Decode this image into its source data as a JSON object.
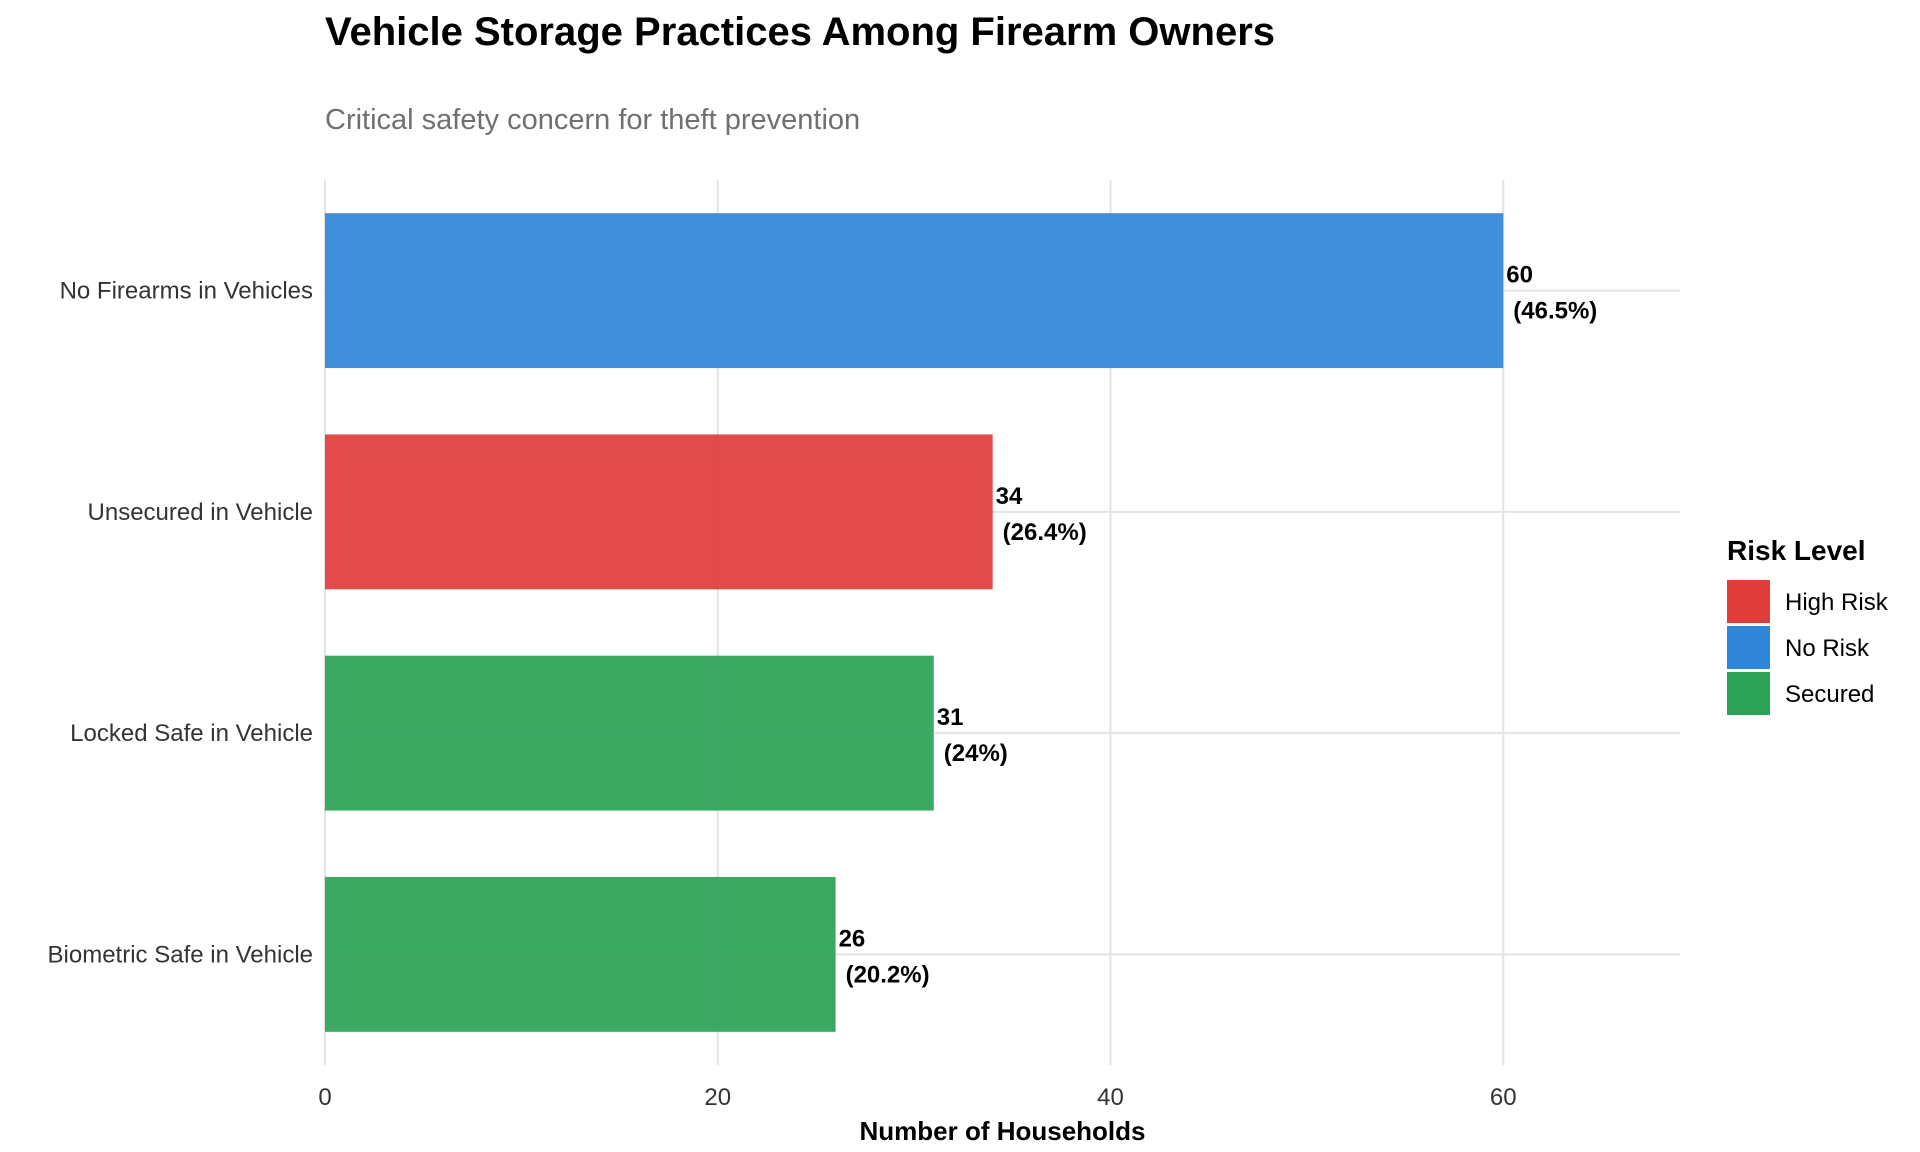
{
  "chart_data": {
    "type": "bar",
    "orientation": "horizontal",
    "title": "Vehicle Storage Practices Among Firearm Owners",
    "subtitle": "Critical safety concern for theft prevention",
    "xlabel": "Number of Households",
    "ylabel": "",
    "xlim": [
      0,
      69
    ],
    "x_ticks": [
      0,
      20,
      40,
      60
    ],
    "grid": true,
    "categories": [
      "No Firearms in Vehicles",
      "Unsecured in Vehicle",
      "Locked Safe in Vehicle",
      "Biometric Safe in Vehicle"
    ],
    "values": [
      60,
      34,
      31,
      26
    ],
    "value_labels": [
      "60",
      "34",
      "31",
      "26"
    ],
    "percent_labels": [
      "(46.5%)",
      "(26.4%)",
      "(24%)",
      "(20.2%)"
    ],
    "risk_level": [
      "No Risk",
      "High Risk",
      "Secured",
      "Secured"
    ],
    "legend": {
      "title": "Risk Level",
      "position": "right",
      "items": [
        {
          "name": "High Risk",
          "color": "#E03C3A"
        },
        {
          "name": "No Risk",
          "color": "#2F86D8"
        },
        {
          "name": "Secured",
          "color": "#2BA256"
        }
      ]
    }
  }
}
